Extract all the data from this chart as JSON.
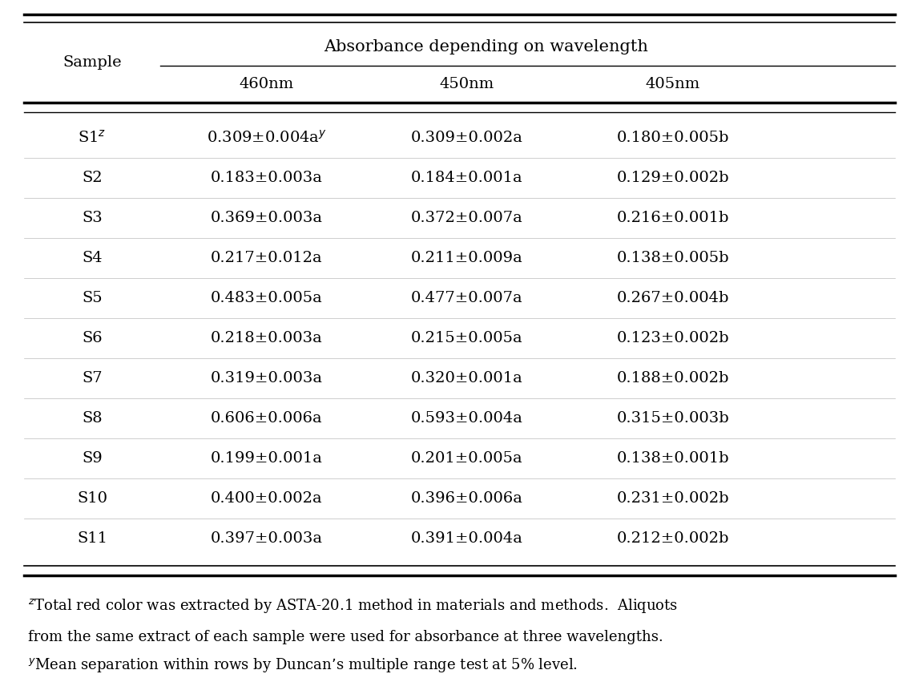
{
  "title": "Absorbance depending on wavelength",
  "col_header_1": "Sample",
  "col_header_2": "460nm",
  "col_header_3": "450nm",
  "col_header_4": "405nm",
  "samples": [
    "S1$^z$",
    "S2",
    "S3",
    "S4",
    "S5",
    "S6",
    "S7",
    "S8",
    "S9",
    "S10",
    "S11"
  ],
  "col_460": [
    "0.309±0.004a$^y$",
    "0.183±0.003a",
    "0.369±0.003a",
    "0.217±0.012a",
    "0.483±0.005a",
    "0.218±0.003a",
    "0.319±0.003a",
    "0.606±0.006a",
    "0.199±0.001a",
    "0.400±0.002a",
    "0.397±0.003a"
  ],
  "col_450": [
    "0.309±0.002a",
    "0.184±0.001a",
    "0.372±0.007a",
    "0.211±0.009a",
    "0.477±0.007a",
    "0.215±0.005a",
    "0.320±0.001a",
    "0.593±0.004a",
    "0.201±0.005a",
    "0.396±0.006a",
    "0.391±0.004a"
  ],
  "col_405": [
    "0.180±0.005b",
    "0.129±0.002b",
    "0.216±0.001b",
    "0.138±0.005b",
    "0.267±0.004b",
    "0.123±0.002b",
    "0.188±0.002b",
    "0.315±0.003b",
    "0.138±0.001b",
    "0.231±0.002b",
    "0.212±0.002b"
  ],
  "footnote1": "$^z$Total red color was extracted by ASTA-20.1 method in materials and methods.  Aliquots",
  "footnote2": "from the same extract of each sample were used for absorbance at three wavelengths.",
  "footnote3": "$^y$Mean separation within rows by Duncan’s multiple range test at 5% level.",
  "bg_color": "#ffffff",
  "text_color": "#000000",
  "font_size": 14,
  "footnote_font_size": 13
}
